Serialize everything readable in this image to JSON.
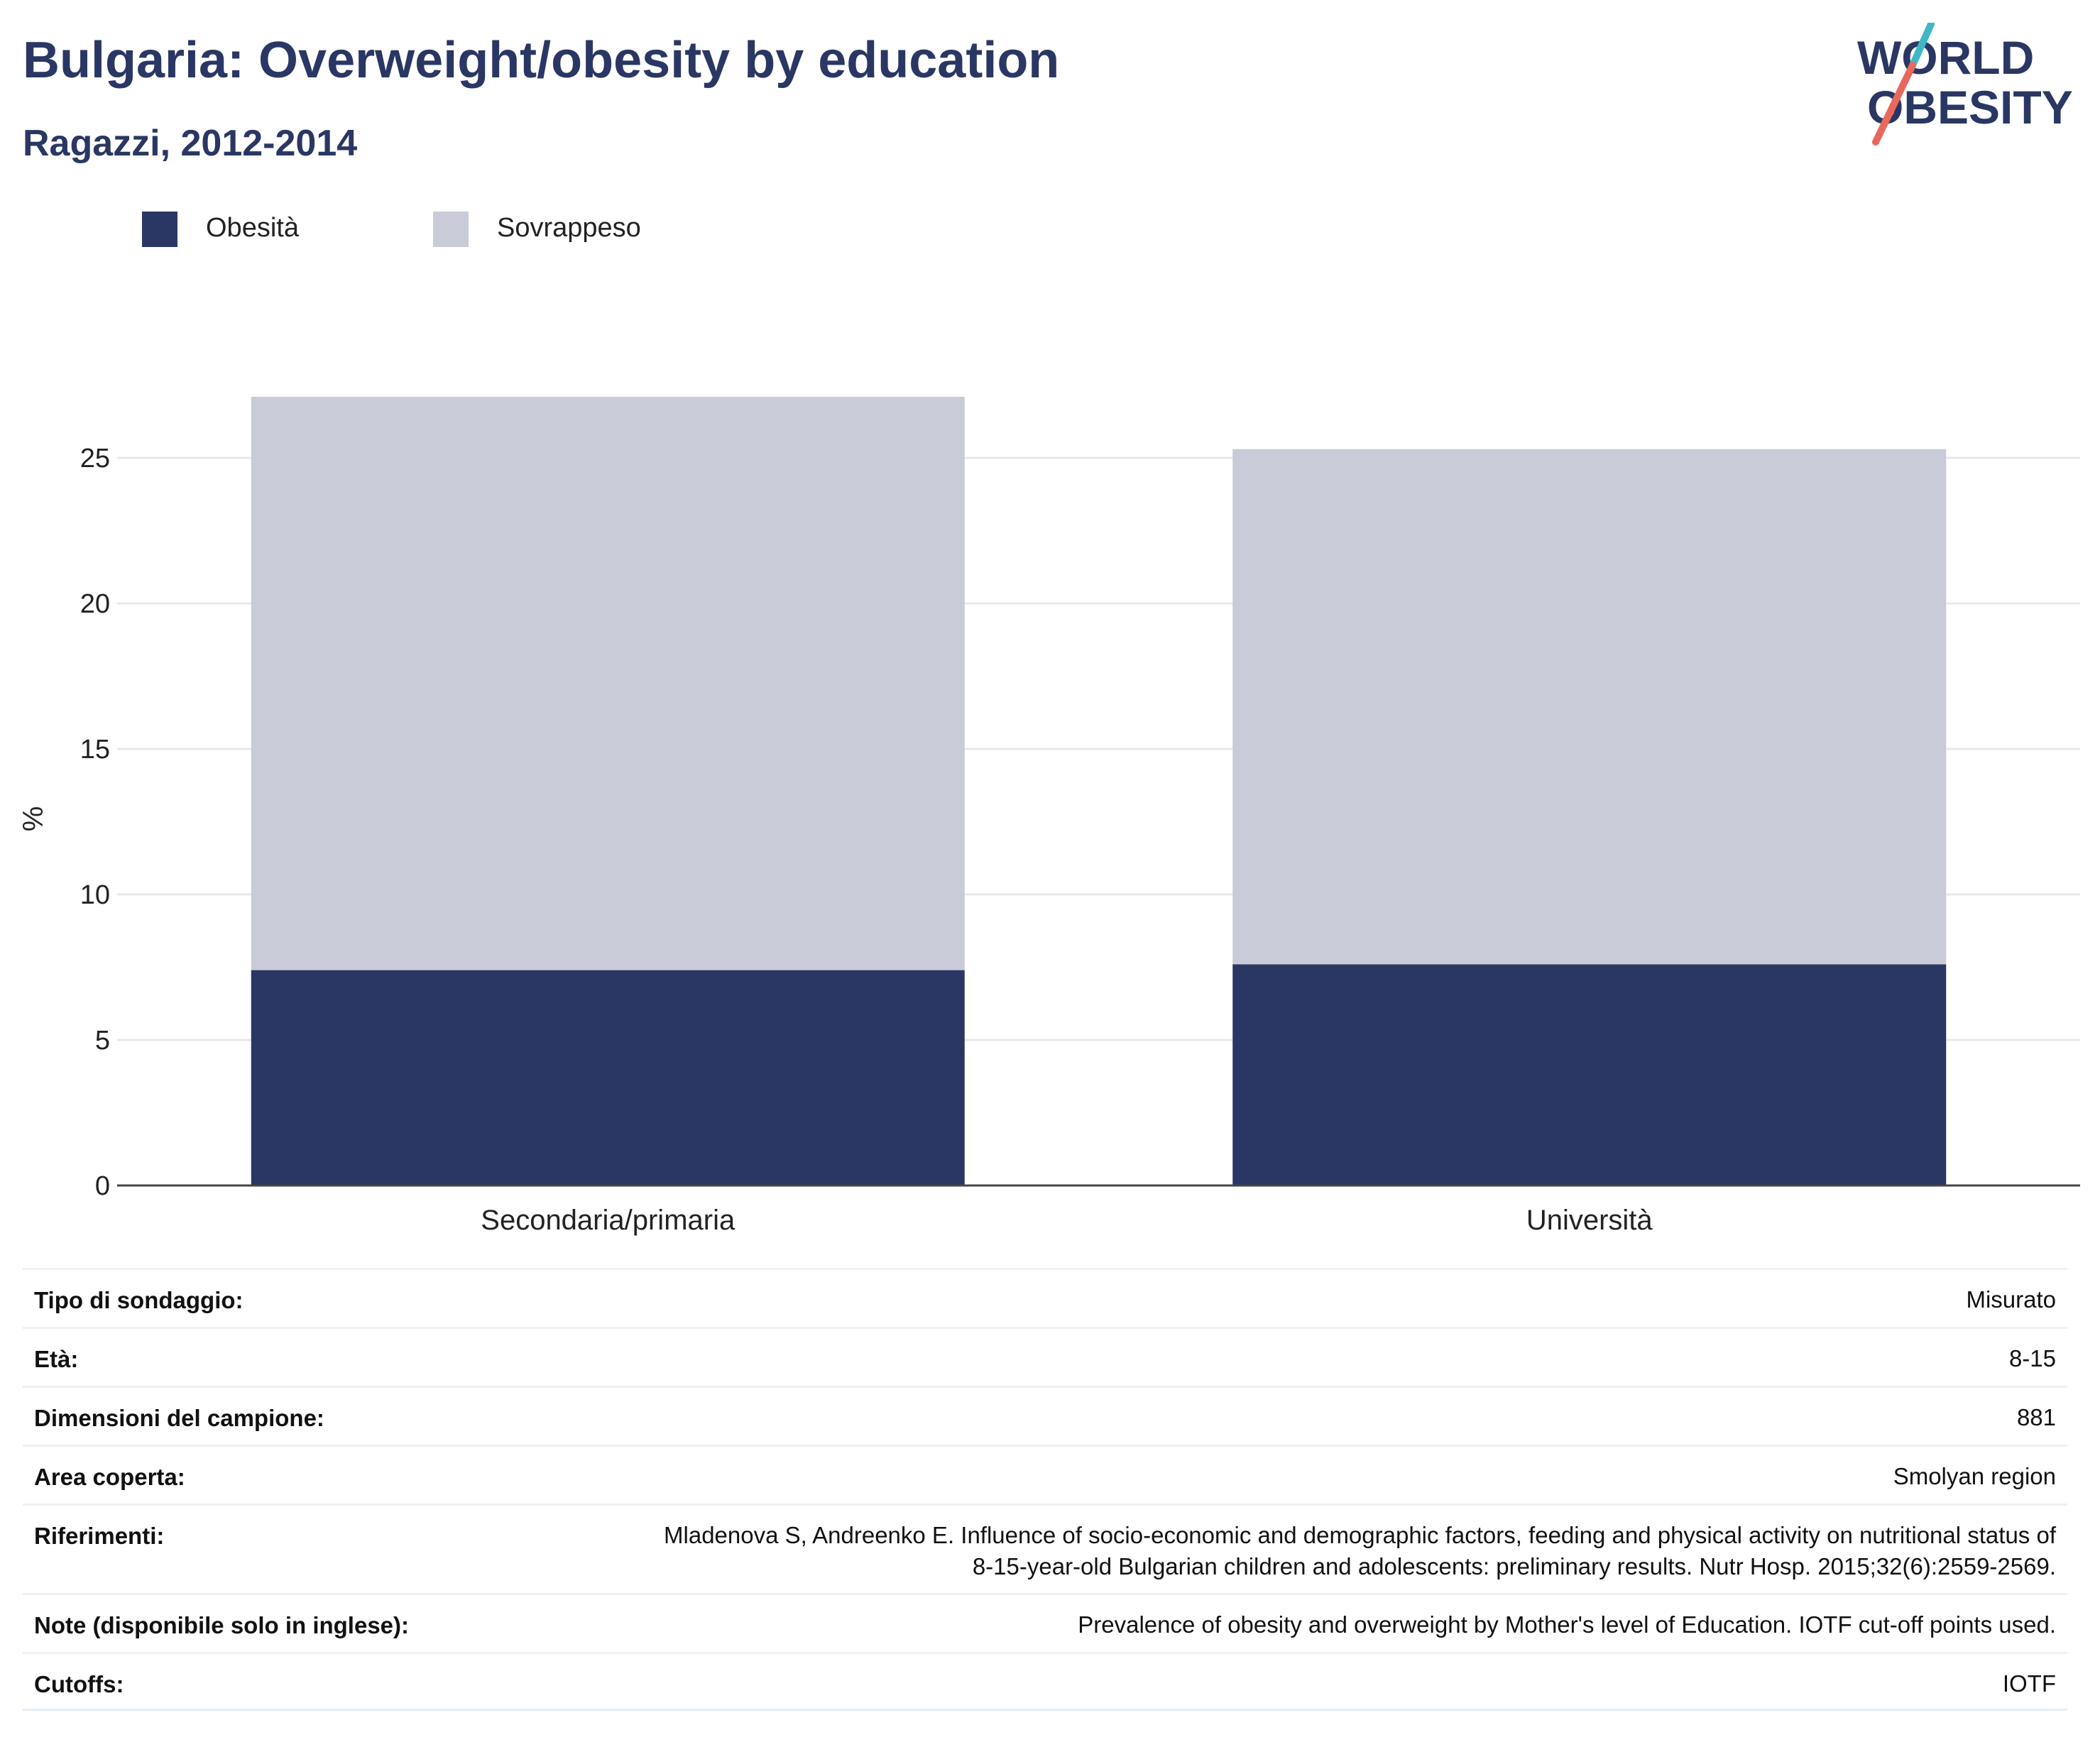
{
  "header": {
    "title": "Bulgaria: Overweight/obesity by education",
    "subtitle": "Ragazzi, 2012-2014"
  },
  "logo": {
    "line1": "WORLD",
    "line2": "OBESITY",
    "colors": {
      "text": "#2a3764",
      "slash_top": "#3fb8c5",
      "slash_bottom": "#e8685b"
    }
  },
  "legend": [
    {
      "label": "Obesità",
      "color": "#2a3764"
    },
    {
      "label": "Sovrappeso",
      "color": "#c9ccd8"
    }
  ],
  "chart_data": {
    "type": "bar",
    "stacked": true,
    "categories": [
      "Secondaria/primaria",
      "Università"
    ],
    "series": [
      {
        "name": "Obesità",
        "color": "#2a3764",
        "values": [
          7.4,
          7.6
        ]
      },
      {
        "name": "Sovrappeso",
        "color": "#c9ccd8",
        "values": [
          19.7,
          17.7
        ]
      }
    ],
    "ylabel": "%",
    "ylim": [
      0,
      27.9
    ],
    "yticks": [
      0,
      5,
      10,
      15,
      20,
      25
    ],
    "grid": true,
    "legend_position": "top-left"
  },
  "info_table": [
    {
      "label": "Tipo di sondaggio:",
      "value": [
        "Misurato"
      ]
    },
    {
      "label": "Età:",
      "value": [
        "8-15"
      ]
    },
    {
      "label": "Dimensioni del campione:",
      "value": [
        "881"
      ]
    },
    {
      "label": "Area coperta:",
      "value": [
        "Smolyan region"
      ]
    },
    {
      "label": "Riferimenti:",
      "value": [
        "Mladenova S, Andreenko E. Influence of socio-economic and demographic factors, feeding and physical activity on nutritional status of",
        "8-15-year-old Bulgarian children and adolescents: preliminary results. Nutr Hosp. 2015;32(6):2559-2569."
      ]
    },
    {
      "label": "Note (disponibile solo in inglese):",
      "value": [
        "Prevalence of obesity and overweight by Mother's level of Education. IOTF cut-off points used."
      ]
    },
    {
      "label": "Cutoffs:",
      "value": [
        "IOTF"
      ]
    }
  ]
}
